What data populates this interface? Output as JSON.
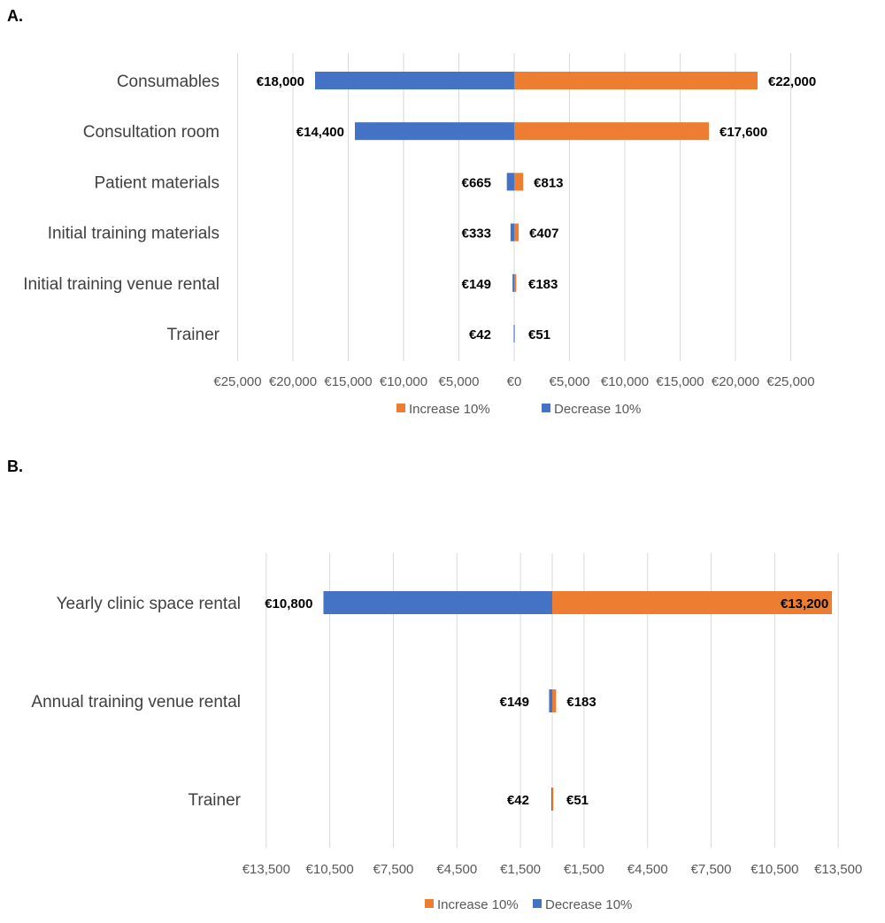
{
  "panels": [
    {
      "label": "A."
    },
    {
      "label": "B."
    }
  ],
  "colors": {
    "increase": "#ED7D31",
    "decrease": "#4472C4",
    "grid": "#D9D9D9"
  },
  "chart_data": [
    {
      "type": "bar",
      "orientation": "horizontal-tornado",
      "title": "",
      "categories": [
        "Consumables",
        "Consultation room",
        "Patient materials",
        "Initial training materials",
        "Initial training venue rental",
        "Trainer"
      ],
      "series": [
        {
          "name": "Increase 10%",
          "values": [
            22000,
            17600,
            813,
            407,
            183,
            51
          ],
          "labels": [
            "€22,000",
            "€17,600",
            "€813",
            "€407",
            "€183",
            "€51"
          ]
        },
        {
          "name": "Decrease 10%",
          "values": [
            -18000,
            -14400,
            -665,
            -333,
            -149,
            -42
          ],
          "labels": [
            "€18,000",
            "€14,400",
            "€665",
            "€333",
            "€149",
            "€42"
          ]
        }
      ],
      "xlim": [
        -25000,
        25000
      ],
      "xticks": [
        -25000,
        -20000,
        -15000,
        -10000,
        -5000,
        0,
        5000,
        10000,
        15000,
        20000,
        25000
      ],
      "xtick_labels": [
        "€25,000",
        "€20,000",
        "€15,000",
        "€10,000",
        "€5,000",
        "€0",
        "€5,000",
        "€10,000",
        "€15,000",
        "€20,000",
        "€25,000"
      ],
      "grid": true,
      "legend": "bottom"
    },
    {
      "type": "bar",
      "orientation": "horizontal-tornado",
      "title": "",
      "categories": [
        "Yearly clinic space rental",
        "Annual training venue rental",
        "Trainer"
      ],
      "series": [
        {
          "name": "Increase 10%",
          "values": [
            13200,
            183,
            51
          ],
          "labels": [
            "€13,200",
            "€183",
            "€51"
          ]
        },
        {
          "name": "Decrease 10%",
          "values": [
            -10800,
            -149,
            -42
          ],
          "labels": [
            "€10,800",
            "€149",
            "€42"
          ]
        }
      ],
      "xlim": [
        -13500,
        13500
      ],
      "xticks": [
        -13500,
        -10500,
        -7500,
        -4500,
        -1500,
        1500,
        4500,
        7500,
        10500,
        13500
      ],
      "xtick_labels": [
        "€13,500",
        "€10,500",
        "€7,500",
        "€4,500",
        "€1,500",
        "€1,500",
        "€4,500",
        "€7,500",
        "€10,500",
        "€13,500"
      ],
      "grid": true,
      "legend": "bottom"
    }
  ]
}
